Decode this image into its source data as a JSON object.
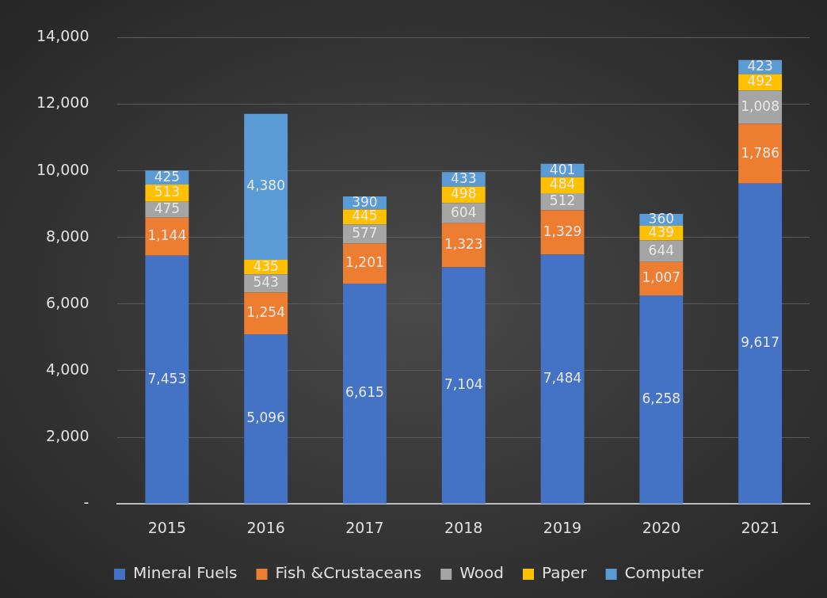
{
  "chart_data": {
    "type": "bar",
    "stacked": true,
    "categories": [
      "2015",
      "2016",
      "2017",
      "2018",
      "2019",
      "2020",
      "2021"
    ],
    "series": [
      {
        "name": "Mineral Fuels",
        "color": "#4472c4",
        "values": [
          7453,
          5096,
          6615,
          7104,
          7484,
          6258,
          9617
        ],
        "value_labels": [
          "7,453",
          "5,096",
          "6,615",
          "7,104",
          "7,484",
          "6,258",
          "9,617"
        ]
      },
      {
        "name": "Fish &Crustaceans",
        "color": "#ed7d31",
        "values": [
          1144,
          1254,
          1201,
          1323,
          1329,
          1007,
          1786
        ],
        "value_labels": [
          "1,144",
          "1,254",
          "1,201",
          "1,323",
          "1,329",
          "1,007",
          "1,786"
        ]
      },
      {
        "name": "Wood",
        "color": "#a5a5a5",
        "values": [
          475,
          543,
          577,
          604,
          512,
          644,
          1008
        ],
        "value_labels": [
          "475",
          "543",
          "577",
          "604",
          "512",
          "644",
          "1,008"
        ]
      },
      {
        "name": "Paper",
        "color": "#ffc000",
        "values": [
          513,
          435,
          445,
          498,
          484,
          439,
          492
        ],
        "value_labels": [
          "513",
          "435",
          "445",
          "498",
          "484",
          "439",
          "492"
        ]
      },
      {
        "name": "Computer",
        "color": "#5b9bd5",
        "values": [
          425,
          4380,
          390,
          433,
          401,
          360,
          423
        ],
        "value_labels": [
          "425",
          "4,380",
          "390",
          "433",
          "401",
          "360",
          "423"
        ]
      }
    ],
    "ylim": [
      0,
      14000
    ],
    "yticks": [
      {
        "value": 0,
        "label": "-"
      },
      {
        "value": 2000,
        "label": "2,000"
      },
      {
        "value": 4000,
        "label": "4,000"
      },
      {
        "value": 6000,
        "label": "6,000"
      },
      {
        "value": 8000,
        "label": "8,000"
      },
      {
        "value": 10000,
        "label": "10,000"
      },
      {
        "value": 12000,
        "label": "12,000"
      },
      {
        "value": 14000,
        "label": "14,000"
      }
    ],
    "grid": "y",
    "legend": "bottom"
  }
}
